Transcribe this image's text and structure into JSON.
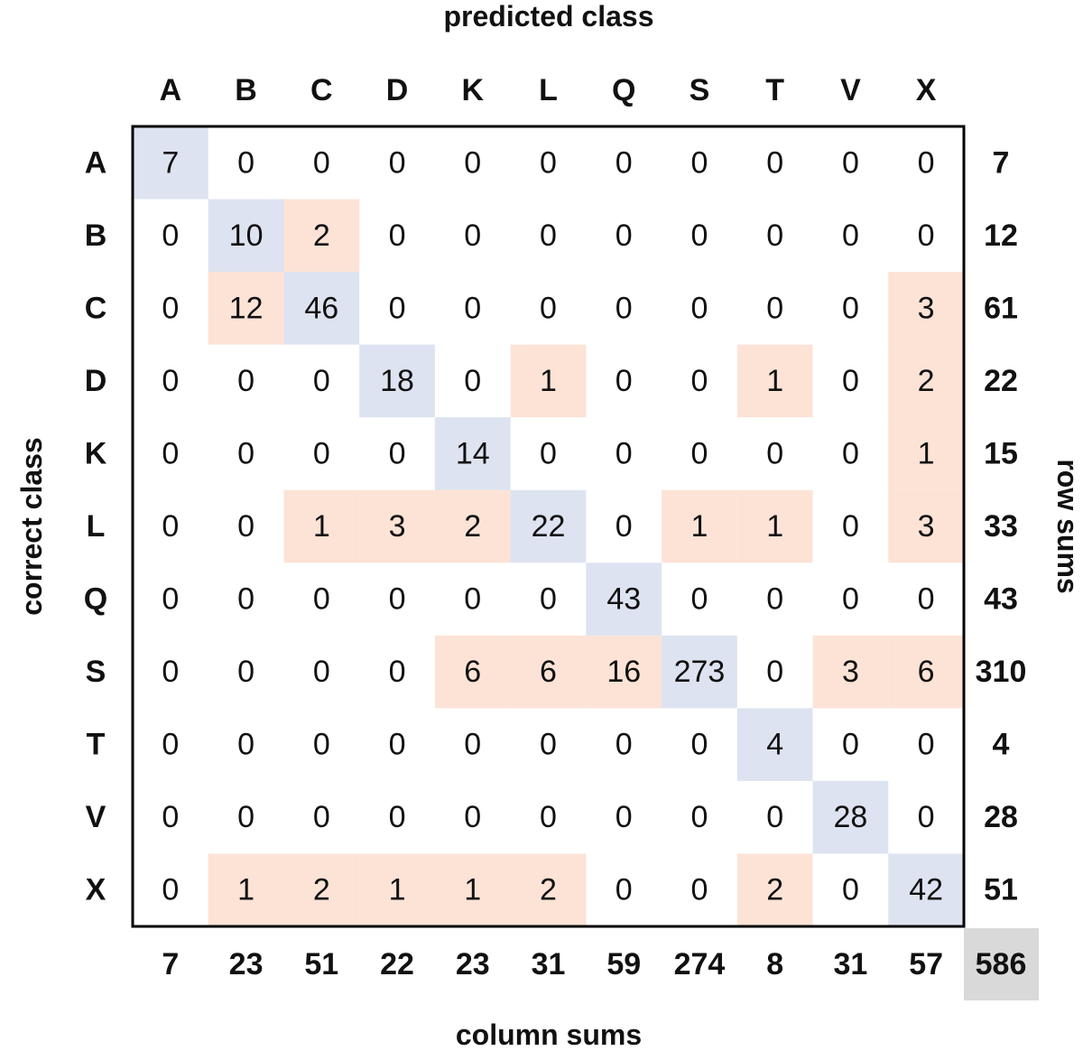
{
  "title": "predicted class",
  "y_axis_label": "correct class",
  "row_sums_label": "row sums",
  "column_sums_label": "column sums",
  "classes": [
    "A",
    "B",
    "C",
    "D",
    "K",
    "L",
    "Q",
    "S",
    "T",
    "V",
    "X"
  ],
  "matrix": [
    [
      7,
      0,
      0,
      0,
      0,
      0,
      0,
      0,
      0,
      0,
      0
    ],
    [
      0,
      10,
      2,
      0,
      0,
      0,
      0,
      0,
      0,
      0,
      0
    ],
    [
      0,
      12,
      46,
      0,
      0,
      0,
      0,
      0,
      0,
      0,
      3
    ],
    [
      0,
      0,
      0,
      18,
      0,
      1,
      0,
      0,
      1,
      0,
      2
    ],
    [
      0,
      0,
      0,
      0,
      14,
      0,
      0,
      0,
      0,
      0,
      1
    ],
    [
      0,
      0,
      1,
      3,
      2,
      22,
      0,
      1,
      1,
      0,
      3
    ],
    [
      0,
      0,
      0,
      0,
      0,
      0,
      43,
      0,
      0,
      0,
      0
    ],
    [
      0,
      0,
      0,
      0,
      6,
      6,
      16,
      273,
      0,
      3,
      6
    ],
    [
      0,
      0,
      0,
      0,
      0,
      0,
      0,
      0,
      4,
      0,
      0
    ],
    [
      0,
      0,
      0,
      0,
      0,
      0,
      0,
      0,
      0,
      28,
      0
    ],
    [
      0,
      1,
      2,
      1,
      1,
      2,
      0,
      0,
      2,
      0,
      42
    ]
  ],
  "row_sums": [
    7,
    12,
    61,
    22,
    15,
    33,
    43,
    310,
    4,
    28,
    51
  ],
  "column_sums": [
    7,
    23,
    51,
    22,
    23,
    31,
    59,
    274,
    8,
    31,
    57
  ],
  "total": 586,
  "colors": {
    "diagonal": "#dde3f0",
    "error": "#fce3d6",
    "total": "#d9d9d9"
  }
}
